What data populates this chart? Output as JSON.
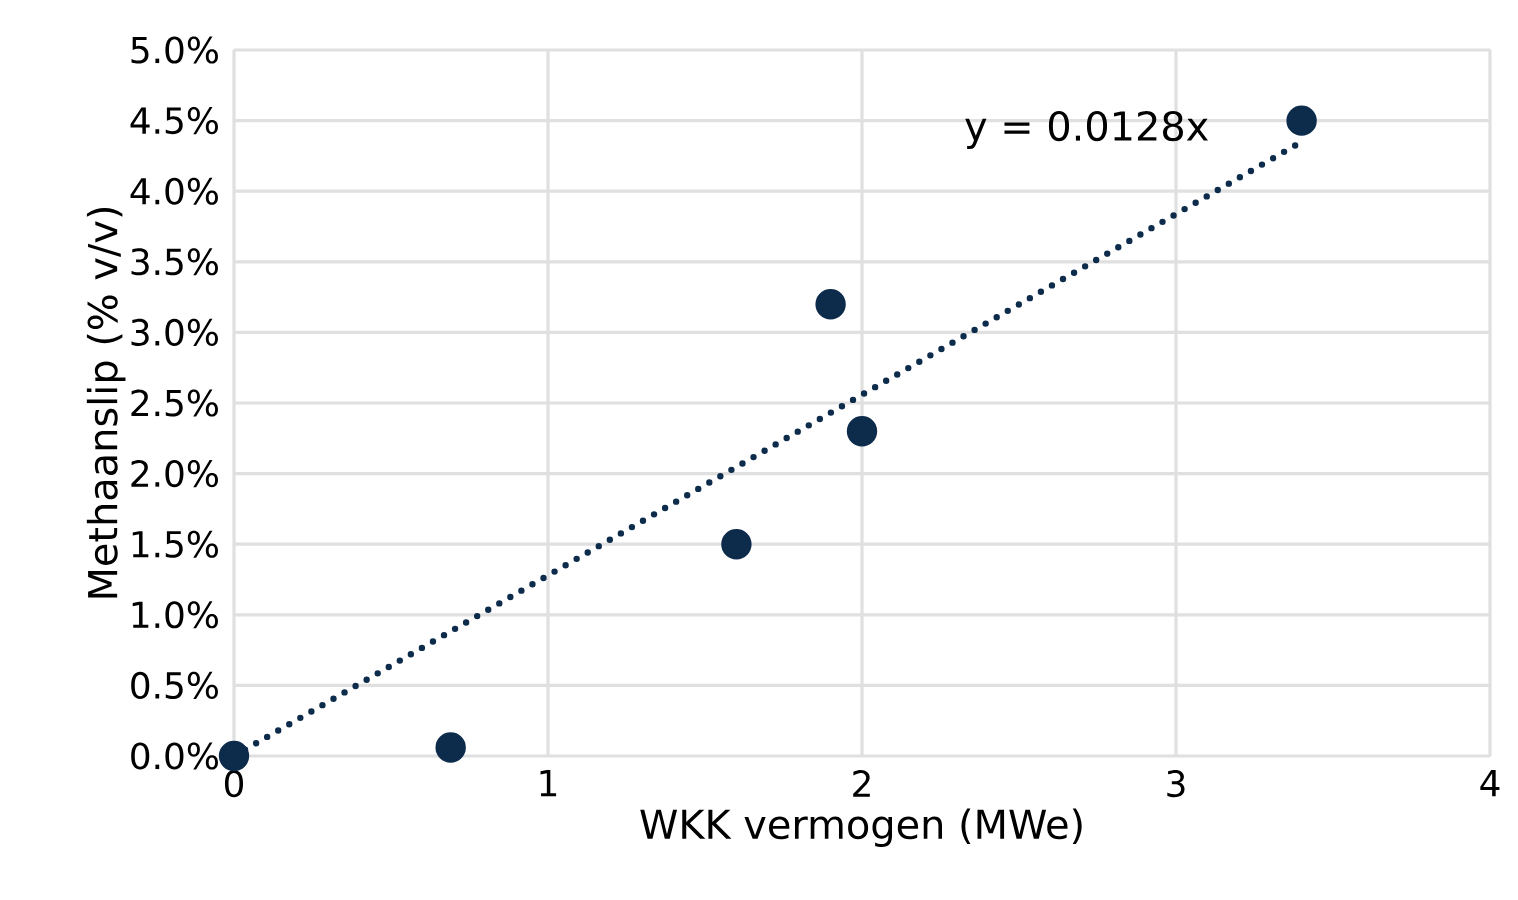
{
  "chart_data": {
    "type": "scatter",
    "xlabel": "WKK vermogen (MWe)",
    "ylabel": "Methaanslip (% v/v)",
    "xlim": [
      0,
      4
    ],
    "xticks": [
      0,
      1,
      2,
      3,
      4
    ],
    "ylim": [
      0,
      5
    ],
    "yticks": [
      {
        "value": 0,
        "label": "0.0%"
      },
      {
        "value": 0.5,
        "label": "0.5%"
      },
      {
        "value": 1,
        "label": "1.0%"
      },
      {
        "value": 1.5,
        "label": "1.5%"
      },
      {
        "value": 2,
        "label": "2.0%"
      },
      {
        "value": 2.5,
        "label": "2.5%"
      },
      {
        "value": 3,
        "label": "3.0%"
      },
      {
        "value": 3.5,
        "label": "3.5%"
      },
      {
        "value": 4,
        "label": "4.0%"
      },
      {
        "value": 4.5,
        "label": "4.5%"
      },
      {
        "value": 5,
        "label": "5.0%"
      }
    ],
    "grid": true,
    "annotations": [
      "y = 0.0128x"
    ],
    "series": [
      {
        "color": "#0d2b4b",
        "marker": "circle",
        "x": [
          0,
          0.69,
          1.6,
          1.9,
          2.0,
          3.4
        ],
        "values": [
          0,
          0.06,
          1.5,
          3.2,
          2.3,
          4.5
        ]
      },
      {
        "type": "line",
        "color": "#0d2b4b",
        "marker": "none",
        "line_style": "dotted",
        "x": [
          0,
          3.4
        ],
        "values": [
          0,
          4.35
        ]
      }
    ]
  }
}
